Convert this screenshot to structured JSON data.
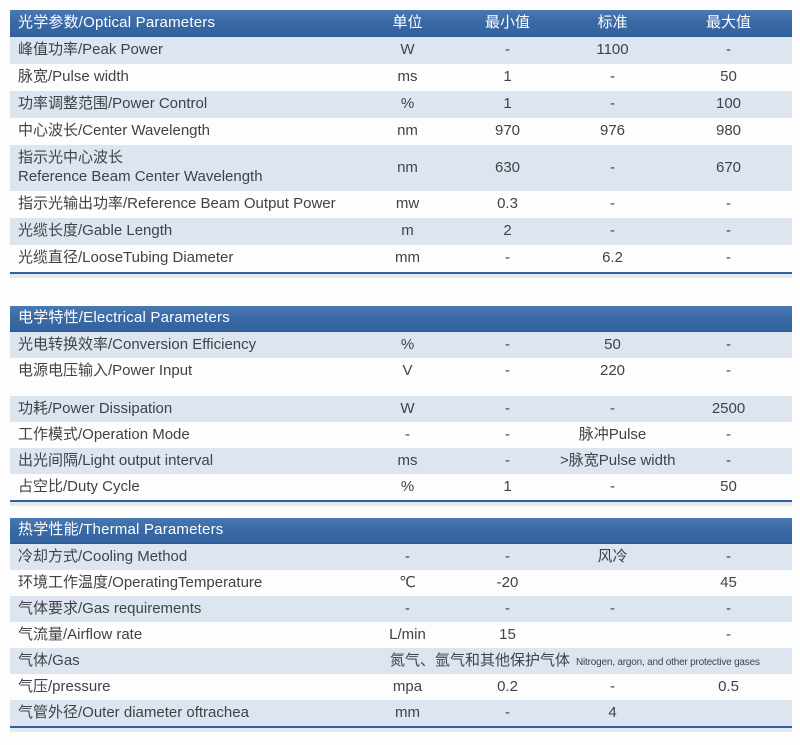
{
  "columns": {
    "unit": "单位",
    "min": "最小值",
    "std": "标准",
    "max": "最大值"
  },
  "colors": {
    "header_bar": "#3a6aa6",
    "header_bar_dark": "#2a5a94",
    "row_alt": "#dde6f0",
    "section_line": "#2f619e",
    "text": "#3f4347",
    "header_text": "#ffffff"
  },
  "sections": [
    {
      "key": "optical",
      "title": "光学参数/Optical Parameters",
      "has_columns": true,
      "rows": [
        {
          "name": "峰值功率/Peak Power",
          "unit": "W",
          "min": "-",
          "std": "1100",
          "max": "-"
        },
        {
          "name": "脉宽/Pulse width",
          "unit": "ms",
          "min": "1",
          "std": "-",
          "max": "50"
        },
        {
          "name": "功率调整范围/Power Control",
          "unit": "%",
          "min": "1",
          "std": "-",
          "max": "100"
        },
        {
          "name": "中心波长/Center Wavelength",
          "unit": "nm",
          "min": "970",
          "std": "976",
          "max": "980"
        },
        {
          "name": "指示光中心波长\nReference Beam Center Wavelength",
          "unit": "nm",
          "min": "630",
          "std": "-",
          "max": "670",
          "tall": true
        },
        {
          "name": "指示光输出功率/Reference Beam Output Power",
          "unit": "mw",
          "min": "0.3",
          "std": "-",
          "max": "-"
        },
        {
          "name": "光缆长度/Gable Length",
          "unit": "m",
          "min": "2",
          "std": "-",
          "max": "-"
        },
        {
          "name": "光缆直径/LooseTubing Diameter",
          "unit": "mm",
          "min": "-",
          "std": "6.2",
          "max": "-"
        }
      ]
    },
    {
      "key": "electrical",
      "title": "电学特性/Electrical Parameters",
      "has_columns": false,
      "rows": [
        {
          "name": "光电转换效率/Conversion Efficiency",
          "unit": "%",
          "min": "-",
          "std": "50",
          "max": "-"
        },
        {
          "name": "电源电压输入/Power Input",
          "unit": "V",
          "min": "-",
          "std": "220",
          "max": "-"
        },
        {
          "name": "功耗/Power Dissipation",
          "unit": "W",
          "min": "-",
          "std": "-",
          "max": "2500",
          "gap_before": true
        },
        {
          "name": "工作模式/Operation Mode",
          "unit": "-",
          "min": "-",
          "std": "脉冲Pulse",
          "max": "-"
        },
        {
          "name": "出光间隔/Light output interval",
          "unit": "ms",
          "min": "-",
          "std": ">脉宽Pulse width",
          "max": "-"
        },
        {
          "name": "占空比/Duty Cycle",
          "unit": "%",
          "min": "1",
          "std": "-",
          "max": "50"
        }
      ]
    },
    {
      "key": "thermal",
      "title": "热学性能/Thermal Parameters",
      "has_columns": false,
      "rows": [
        {
          "name": "冷却方式/Cooling Method",
          "unit": "-",
          "min": "-",
          "std": "风冷",
          "max": "-"
        },
        {
          "name": "环境工作温度/OperatingTemperature",
          "unit": "℃",
          "min": "-20",
          "std": "",
          "max": "45"
        },
        {
          "name": "气体要求/Gas requirements",
          "unit": "-",
          "min": "-",
          "std": "-",
          "max": "-"
        },
        {
          "name": "气流量/Airflow rate",
          "unit": "L/min",
          "min": "15",
          "std": "",
          "max": "-"
        },
        {
          "name": "气体/Gas",
          "span_cn": "氮气、氩气和其他保护气体",
          "span_en": "Nitrogen, argon, and other protective gases"
        },
        {
          "name": "气压/pressure",
          "unit": "mpa",
          "min": "0.2",
          "std": "-",
          "max": "0.5"
        },
        {
          "name": "气管外径/Outer diameter oftrachea",
          "unit": "mm",
          "min": "-",
          "std": "4",
          "max": ""
        }
      ]
    }
  ]
}
